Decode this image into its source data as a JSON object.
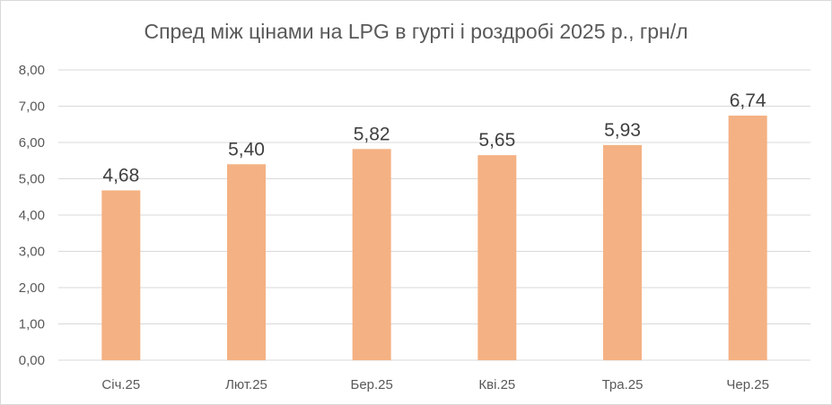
{
  "chart_data": {
    "type": "bar",
    "title": "Спред між цінами на LPG в гурті і роздробі 2025 р., грн/л",
    "categories": [
      "Січ.25",
      "Лют.25",
      "Бер.25",
      "Кві.25",
      "Тра.25",
      "Чер.25"
    ],
    "values": [
      4.68,
      5.4,
      5.82,
      5.65,
      5.93,
      6.74
    ],
    "data_labels": [
      "4,68",
      "5,40",
      "5,82",
      "5,65",
      "5,93",
      "6,74"
    ],
    "y_ticks": [
      "0,00",
      "1,00",
      "2,00",
      "3,00",
      "4,00",
      "5,00",
      "6,00",
      "7,00",
      "8,00"
    ],
    "ylim": [
      0,
      8
    ],
    "xlabel": "",
    "ylabel": "",
    "grid": true,
    "legend": "none",
    "bar_color": "#f4b183",
    "grid_color": "#d9d9d9",
    "text_color": "#595959"
  }
}
